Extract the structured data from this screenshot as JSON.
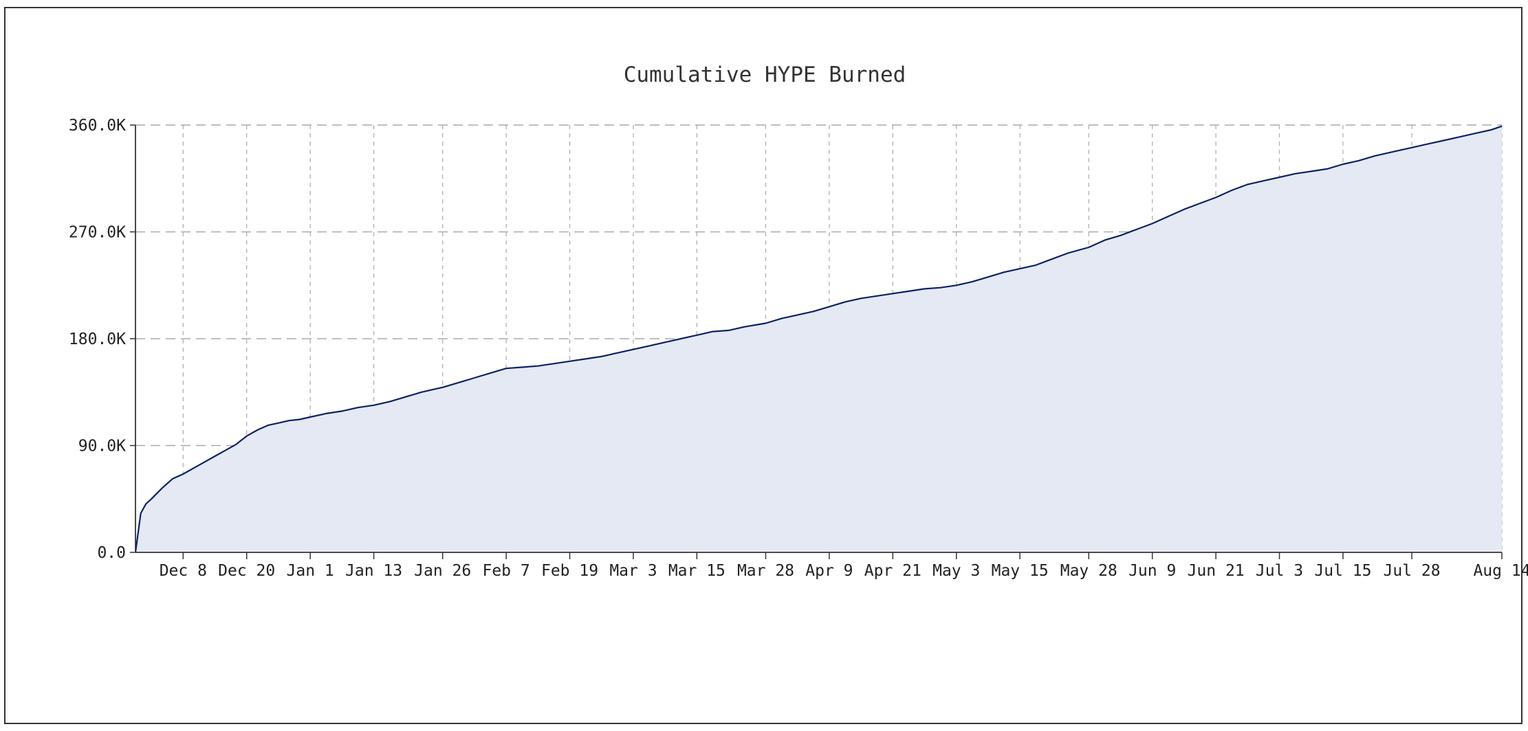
{
  "chart_data": {
    "type": "area",
    "title": "Cumulative HYPE Burned",
    "xlabel": "",
    "ylabel": "",
    "ylim": [
      0,
      360000
    ],
    "y_ticks": [
      {
        "value": 0,
        "label": "0.0"
      },
      {
        "value": 90000,
        "label": "90.0K"
      },
      {
        "value": 180000,
        "label": "180.0K"
      },
      {
        "value": 270000,
        "label": "270.0K"
      },
      {
        "value": 360000,
        "label": "360.0K"
      }
    ],
    "x_range": [
      "2024-11-29",
      "2025-08-14"
    ],
    "x_ticks": [
      {
        "date": "2024-12-08",
        "label": "Dec 8"
      },
      {
        "date": "2024-12-20",
        "label": "Dec 20"
      },
      {
        "date": "2025-01-01",
        "label": "Jan 1"
      },
      {
        "date": "2025-01-13",
        "label": "Jan 13"
      },
      {
        "date": "2025-01-26",
        "label": "Jan 26"
      },
      {
        "date": "2025-02-07",
        "label": "Feb 7"
      },
      {
        "date": "2025-02-19",
        "label": "Feb 19"
      },
      {
        "date": "2025-03-03",
        "label": "Mar 3"
      },
      {
        "date": "2025-03-15",
        "label": "Mar 15"
      },
      {
        "date": "2025-03-28",
        "label": "Mar 28"
      },
      {
        "date": "2025-04-09",
        "label": "Apr 9"
      },
      {
        "date": "2025-04-21",
        "label": "Apr 21"
      },
      {
        "date": "2025-05-03",
        "label": "May 3"
      },
      {
        "date": "2025-05-15",
        "label": "May 15"
      },
      {
        "date": "2025-05-28",
        "label": "May 28"
      },
      {
        "date": "2025-06-09",
        "label": "Jun 9"
      },
      {
        "date": "2025-06-21",
        "label": "Jun 21"
      },
      {
        "date": "2025-07-03",
        "label": "Jul 3"
      },
      {
        "date": "2025-07-15",
        "label": "Jul 15"
      },
      {
        "date": "2025-07-28",
        "label": "Jul 28"
      },
      {
        "date": "2025-08-14",
        "label": "Aug 14"
      }
    ],
    "grid": {
      "horizontal": "dashed",
      "vertical": "dashed"
    },
    "legend": "none",
    "colors": {
      "line": "#0b2265",
      "fill": "#e4e9f3",
      "grid": "#aaaaaa",
      "axis": "#333333"
    },
    "series": [
      {
        "x": [
          "2024-11-29",
          "2024-11-30",
          "2024-12-01",
          "2024-12-02",
          "2024-12-04",
          "2024-12-06",
          "2024-12-08",
          "2024-12-10",
          "2024-12-12",
          "2024-12-14",
          "2024-12-16",
          "2024-12-18",
          "2024-12-20",
          "2024-12-22",
          "2024-12-24",
          "2024-12-26",
          "2024-12-28",
          "2024-12-30",
          "2025-01-01",
          "2025-01-04",
          "2025-01-07",
          "2025-01-10",
          "2025-01-13",
          "2025-01-16",
          "2025-01-19",
          "2025-01-22",
          "2025-01-26",
          "2025-01-29",
          "2025-02-01",
          "2025-02-04",
          "2025-02-07",
          "2025-02-10",
          "2025-02-13",
          "2025-02-16",
          "2025-02-19",
          "2025-02-22",
          "2025-02-25",
          "2025-02-28",
          "2025-03-03",
          "2025-03-06",
          "2025-03-09",
          "2025-03-12",
          "2025-03-15",
          "2025-03-18",
          "2025-03-21",
          "2025-03-24",
          "2025-03-28",
          "2025-03-31",
          "2025-04-03",
          "2025-04-06",
          "2025-04-09",
          "2025-04-12",
          "2025-04-15",
          "2025-04-18",
          "2025-04-21",
          "2025-04-24",
          "2025-04-27",
          "2025-04-30",
          "2025-05-03",
          "2025-05-06",
          "2025-05-09",
          "2025-05-12",
          "2025-05-15",
          "2025-05-18",
          "2025-05-21",
          "2025-05-24",
          "2025-05-28",
          "2025-05-31",
          "2025-06-03",
          "2025-06-06",
          "2025-06-09",
          "2025-06-12",
          "2025-06-15",
          "2025-06-18",
          "2025-06-21",
          "2025-06-24",
          "2025-06-27",
          "2025-06-30",
          "2025-07-03",
          "2025-07-06",
          "2025-07-09",
          "2025-07-12",
          "2025-07-15",
          "2025-07-18",
          "2025-07-21",
          "2025-07-24",
          "2025-07-28",
          "2025-07-31",
          "2025-08-03",
          "2025-08-06",
          "2025-08-09",
          "2025-08-12",
          "2025-08-14"
        ],
        "values": [
          0,
          33000,
          41000,
          45000,
          54000,
          62000,
          66000,
          71000,
          76000,
          81000,
          86000,
          91000,
          98000,
          103000,
          107000,
          109000,
          111000,
          112000,
          114000,
          117000,
          119000,
          122000,
          124000,
          127000,
          131000,
          135000,
          139000,
          143000,
          147000,
          151000,
          155000,
          156000,
          157000,
          159000,
          161000,
          163000,
          165000,
          168000,
          171000,
          174000,
          177000,
          180000,
          183000,
          186000,
          187000,
          190000,
          193000,
          197000,
          200000,
          203000,
          207000,
          211000,
          214000,
          216000,
          218000,
          220000,
          222000,
          223000,
          225000,
          228000,
          232000,
          236000,
          239000,
          242000,
          247000,
          252000,
          257000,
          263000,
          267000,
          272000,
          277000,
          283000,
          289000,
          294000,
          299000,
          305000,
          310000,
          313000,
          316000,
          319000,
          321000,
          323000,
          327000,
          330000,
          334000,
          337000,
          341000,
          344000,
          347000,
          350000,
          353000,
          356000,
          359000
        ]
      }
    ]
  }
}
